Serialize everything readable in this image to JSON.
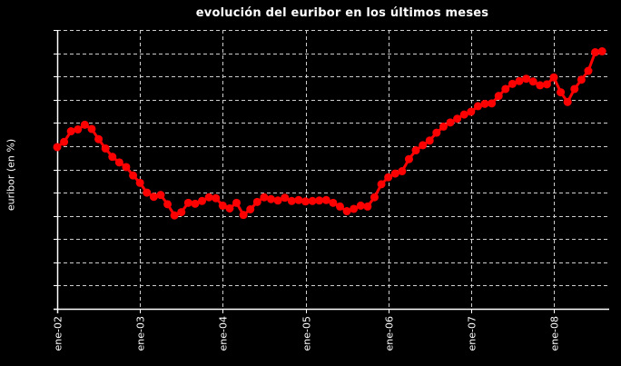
{
  "chart_data": {
    "type": "line",
    "title": "evolución del euribor en los últimos meses",
    "xlabel": "",
    "ylabel": "euribor (en %)",
    "ylim": [
      0,
      6
    ],
    "y_gridlines": [
      0.5,
      1,
      1.5,
      2,
      2.5,
      3,
      3.5,
      4,
      4.5,
      5,
      5.5,
      6
    ],
    "y_tick_labels_visible": false,
    "x_tick_labels": [
      "ene-02",
      "ene-03",
      "ene-04",
      "ene-05",
      "ene-06",
      "ene-07",
      "ene-08"
    ],
    "grid": true,
    "legend": null,
    "series": [
      {
        "name": "euribor",
        "color": "#ff0000",
        "start": "ene-02",
        "frequency": "monthly",
        "values": [
          3.48,
          3.59,
          3.82,
          3.86,
          3.96,
          3.87,
          3.65,
          3.45,
          3.27,
          3.15,
          3.05,
          2.87,
          2.71,
          2.5,
          2.41,
          2.45,
          2.25,
          2.01,
          2.08,
          2.28,
          2.26,
          2.32,
          2.4,
          2.38,
          2.22,
          2.16,
          2.28,
          2.02,
          2.14,
          2.3,
          2.4,
          2.36,
          2.33,
          2.39,
          2.32,
          2.34,
          2.31,
          2.32,
          2.33,
          2.34,
          2.28,
          2.2,
          2.1,
          2.15,
          2.22,
          2.2,
          2.4,
          2.68,
          2.83,
          2.91,
          2.96,
          3.22,
          3.41,
          3.52,
          3.62,
          3.79,
          3.92,
          4.01,
          4.09,
          4.18,
          4.24,
          4.36,
          4.41,
          4.42,
          4.58,
          4.73,
          4.84,
          4.9,
          4.95,
          4.89,
          4.81,
          4.83,
          4.98,
          4.66,
          4.45,
          4.73,
          4.93,
          5.12,
          5.52,
          5.54
        ]
      }
    ]
  }
}
